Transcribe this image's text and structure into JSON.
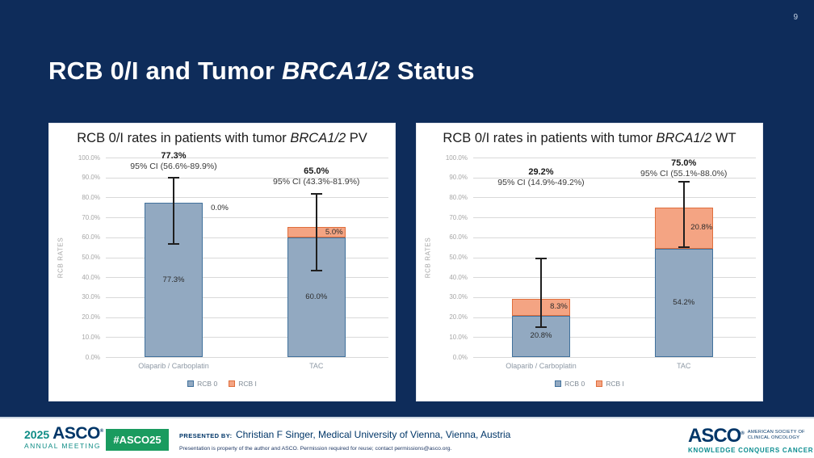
{
  "page_number": "9",
  "slide_title": {
    "prefix": "RCB 0/I and Tumor ",
    "emphasis": "BRCA1/2",
    "suffix": " Status"
  },
  "colors": {
    "background": "#0e2c5a",
    "accent_teal": "#0e8c85",
    "badge_green": "#1a9b5f",
    "navy_text": "#003668",
    "rcb0_fill": "#92a9c1",
    "rcb0_border": "#41719c",
    "rcb1_fill": "#f4a483",
    "rcb1_border": "#df6e3c",
    "gridline": "#d9d9d9",
    "error_bar": "#1f1f1f"
  },
  "chart_data": [
    {
      "type": "bar",
      "stacked": true,
      "title_prefix": "RCB 0/I rates in patients with tumor ",
      "title_emphasis": "BRCA1/2",
      "title_suffix": " PV",
      "ylabel": "RCB RATES",
      "ylim": [
        0,
        100
      ],
      "ytick_step": 10,
      "grid": true,
      "legend_position": "bottom",
      "categories": [
        "Olaparib / Carboplatin",
        "TAC"
      ],
      "series": [
        {
          "name": "RCB 0",
          "fill": "#92a9c1",
          "border": "#41719c",
          "values": [
            77.3,
            60.0
          ],
          "labels": [
            "77.3%",
            "60.0%"
          ]
        },
        {
          "name": "RCB I",
          "fill": "#f4a483",
          "border": "#df6e3c",
          "values": [
            0.0,
            5.0
          ],
          "labels": [
            "0.0%",
            "5.0%"
          ]
        }
      ],
      "annotations": [
        {
          "total": "77.3%",
          "ci": "95% CI (56.6%-89.9%)"
        },
        {
          "total": "65.0%",
          "ci": "95% CI (43.3%-81.9%)"
        }
      ],
      "error_bars": [
        {
          "low": 56.6,
          "high": 89.9
        },
        {
          "low": 43.3,
          "high": 81.9
        }
      ],
      "legend": [
        "RCB 0",
        "RCB I"
      ]
    },
    {
      "type": "bar",
      "stacked": true,
      "title_prefix": "RCB 0/I rates in patients with tumor ",
      "title_emphasis": "BRCA1/2",
      "title_suffix": " WT",
      "ylabel": "RCB RATES",
      "ylim": [
        0,
        100
      ],
      "ytick_step": 10,
      "grid": true,
      "legend_position": "bottom",
      "categories": [
        "Olaparib / Carboplatin",
        "TAC"
      ],
      "series": [
        {
          "name": "RCB 0",
          "fill": "#92a9c1",
          "border": "#41719c",
          "values": [
            20.8,
            54.2
          ],
          "labels": [
            "20.8%",
            "54.2%"
          ]
        },
        {
          "name": "RCB I",
          "fill": "#f4a483",
          "border": "#df6e3c",
          "values": [
            8.3,
            20.8
          ],
          "labels": [
            "8.3%",
            "20.8%"
          ]
        }
      ],
      "annotations": [
        {
          "total": "29.2%",
          "ci": "95% CI (14.9%-49.2%)"
        },
        {
          "total": "75.0%",
          "ci": "95% CI (55.1%-88.0%)"
        }
      ],
      "error_bars": [
        {
          "low": 14.9,
          "high": 49.2
        },
        {
          "low": 55.1,
          "high": 88.0
        }
      ],
      "legend": [
        "RCB 0",
        "RCB I"
      ]
    }
  ],
  "footer": {
    "meeting_logo": {
      "year": "2025",
      "brand": "ASCO",
      "registered": "®",
      "subtitle": "ANNUAL MEETING"
    },
    "hashtag": "#ASCO25",
    "presented_by_label": "PRESENTED BY:",
    "presenter": "Christian F Singer, Medical University of Vienna, Vienna, Austria",
    "disclaimer": "Presentation is property of the author and ASCO. Permission required for reuse; contact permissions@asco.org.",
    "asco_logo": {
      "brand": "ASCO",
      "registered": "®",
      "society_line1": "AMERICAN SOCIETY OF",
      "society_line2": "CLINICAL ONCOLOGY",
      "tagline": "KNOWLEDGE CONQUERS CANCER"
    }
  }
}
